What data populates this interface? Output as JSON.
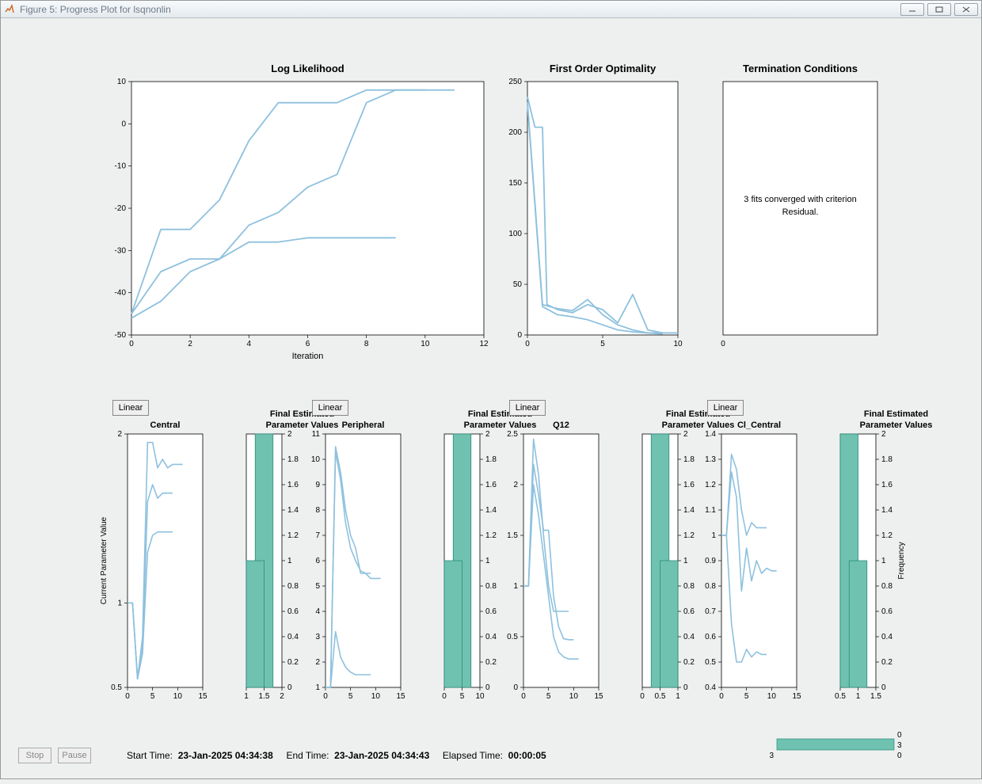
{
  "window": {
    "title": "Figure 5: Progress Plot for lsqnonlin"
  },
  "colors": {
    "line": "#8ec1de",
    "bar": "#6fc2b0",
    "bar_stroke": "#2c8a78",
    "axis": "#000000",
    "tick_color": "#202020",
    "bg": "#eef0f0",
    "plot_bg": "#ffffff"
  },
  "log_likelihood": {
    "title": "Log Likelihood",
    "xlabel": "Iteration",
    "xlim": [
      0,
      12
    ],
    "xticks": [
      0,
      2,
      4,
      6,
      8,
      10,
      12
    ],
    "ylim": [
      -50,
      10
    ],
    "yticks": [
      -50,
      -40,
      -30,
      -20,
      -10,
      0,
      10
    ],
    "series": [
      [
        [
          0,
          -45
        ],
        [
          1,
          -35
        ],
        [
          2,
          -32
        ],
        [
          3,
          -32
        ],
        [
          4,
          -28
        ],
        [
          5,
          -28
        ],
        [
          6,
          -27
        ],
        [
          7,
          -27
        ],
        [
          8,
          -27
        ],
        [
          9,
          -27
        ]
      ],
      [
        [
          0,
          -46
        ],
        [
          1,
          -42
        ],
        [
          2,
          -35
        ],
        [
          3,
          -32
        ],
        [
          4,
          -24
        ],
        [
          5,
          -21
        ],
        [
          6,
          -15
        ],
        [
          7,
          -12
        ],
        [
          8,
          5
        ],
        [
          9,
          8
        ],
        [
          10,
          8
        ],
        [
          11,
          8
        ]
      ],
      [
        [
          0,
          -45
        ],
        [
          1,
          -25
        ],
        [
          2,
          -25
        ],
        [
          3,
          -18
        ],
        [
          4,
          -4
        ],
        [
          5,
          5
        ],
        [
          6,
          5
        ],
        [
          7,
          5
        ],
        [
          8,
          8
        ],
        [
          9,
          8
        ],
        [
          10,
          8
        ]
      ]
    ]
  },
  "first_order": {
    "title": "First Order Optimality",
    "xlim": [
      0,
      10
    ],
    "xticks": [
      0,
      5,
      10
    ],
    "ylim": [
      0,
      250
    ],
    "yticks": [
      0,
      50,
      100,
      150,
      200,
      250
    ],
    "series": [
      [
        [
          0,
          235
        ],
        [
          0.5,
          205
        ],
        [
          1,
          205
        ],
        [
          1.3,
          30
        ],
        [
          2,
          25
        ],
        [
          3,
          22
        ],
        [
          4,
          30
        ],
        [
          5,
          25
        ],
        [
          6,
          12
        ],
        [
          7,
          40
        ],
        [
          8,
          5
        ],
        [
          9,
          2
        ],
        [
          10,
          2
        ]
      ],
      [
        [
          0,
          230
        ],
        [
          1,
          30
        ],
        [
          2,
          26
        ],
        [
          3,
          24
        ],
        [
          4,
          35
        ],
        [
          5,
          20
        ],
        [
          6,
          10
        ],
        [
          7,
          5
        ],
        [
          8,
          2
        ],
        [
          9,
          2
        ]
      ],
      [
        [
          0,
          228
        ],
        [
          1,
          28
        ],
        [
          2,
          20
        ],
        [
          3,
          18
        ],
        [
          4,
          15
        ],
        [
          5,
          10
        ],
        [
          6,
          5
        ],
        [
          7,
          3
        ],
        [
          8,
          2
        ],
        [
          9,
          1
        ]
      ]
    ]
  },
  "termination": {
    "title": "Termination Conditions",
    "xtick": [
      "0"
    ],
    "text": [
      "3 fits converged with criterion",
      "Residual."
    ]
  },
  "params": [
    {
      "button": "Linear",
      "title": "Central",
      "ylim": [
        0.5,
        2
      ],
      "yticks": [
        0.5,
        1,
        2
      ],
      "xlim": [
        0,
        15
      ],
      "xticks": [
        0,
        5,
        10,
        15
      ],
      "series": [
        [
          [
            0,
            1
          ],
          [
            1,
            1
          ],
          [
            2,
            0.55
          ],
          [
            3,
            0.8
          ],
          [
            4,
            1.95
          ],
          [
            5,
            1.95
          ],
          [
            6,
            1.8
          ],
          [
            7,
            1.85
          ],
          [
            8,
            1.8
          ],
          [
            9,
            1.82
          ],
          [
            10,
            1.82
          ],
          [
            11,
            1.82
          ]
        ],
        [
          [
            0,
            1
          ],
          [
            1,
            1
          ],
          [
            2,
            0.55
          ],
          [
            3,
            0.75
          ],
          [
            4,
            1.6
          ],
          [
            5,
            1.7
          ],
          [
            6,
            1.62
          ],
          [
            7,
            1.65
          ],
          [
            8,
            1.65
          ],
          [
            9,
            1.65
          ]
        ],
        [
          [
            0,
            1
          ],
          [
            1,
            1
          ],
          [
            2,
            0.55
          ],
          [
            3,
            0.7
          ],
          [
            4,
            1.3
          ],
          [
            5,
            1.4
          ],
          [
            6,
            1.42
          ],
          [
            7,
            1.42
          ],
          [
            8,
            1.42
          ],
          [
            9,
            1.42
          ]
        ]
      ],
      "bar": {
        "title": "Final Estimated Parameter Values",
        "xlim": [
          1,
          2
        ],
        "xticks": [
          1,
          1.5,
          2
        ],
        "yticks": [
          0,
          0.2,
          0.4,
          0.6,
          0.8,
          1,
          1.2,
          1.4,
          1.6,
          1.8,
          2
        ],
        "bars": [
          {
            "x": 1.5,
            "w": 0.5,
            "h": 2
          },
          {
            "x": 1.25,
            "w": 0.5,
            "h": 1
          }
        ]
      }
    },
    {
      "button": "Linear",
      "title": "Peripheral",
      "ylim": [
        1,
        11
      ],
      "yticks": [
        1,
        2,
        3,
        4,
        5,
        6,
        7,
        8,
        9,
        10,
        11
      ],
      "xlim": [
        0,
        15
      ],
      "xticks": [
        0,
        5,
        10,
        15
      ],
      "series": [
        [
          [
            0,
            1
          ],
          [
            1,
            1
          ],
          [
            2,
            10.5
          ],
          [
            3,
            9.5
          ],
          [
            4,
            8
          ],
          [
            5,
            7
          ],
          [
            6,
            6.5
          ],
          [
            7,
            5.5
          ],
          [
            8,
            5.5
          ],
          [
            9,
            5.3
          ],
          [
            10,
            5.3
          ],
          [
            11,
            5.3
          ]
        ],
        [
          [
            0,
            1
          ],
          [
            1,
            1
          ],
          [
            2,
            10.3
          ],
          [
            3,
            9.2
          ],
          [
            4,
            7.5
          ],
          [
            5,
            6.5
          ],
          [
            6,
            6.0
          ],
          [
            7,
            5.6
          ],
          [
            8,
            5.5
          ],
          [
            9,
            5.5
          ]
        ],
        [
          [
            0,
            1
          ],
          [
            1,
            1
          ],
          [
            2,
            3.2
          ],
          [
            3,
            2.2
          ],
          [
            4,
            1.8
          ],
          [
            5,
            1.6
          ],
          [
            6,
            1.5
          ],
          [
            7,
            1.5
          ],
          [
            8,
            1.5
          ],
          [
            9,
            1.5
          ]
        ]
      ],
      "bar": {
        "title": "Final Estimated Parameter Values",
        "xlim": [
          0,
          10
        ],
        "xticks": [
          0,
          5,
          10
        ],
        "yticks": [
          0,
          0.2,
          0.4,
          0.6,
          0.8,
          1,
          1.2,
          1.4,
          1.6,
          1.8,
          2
        ],
        "bars": [
          {
            "x": 5,
            "w": 5,
            "h": 2
          },
          {
            "x": 2.5,
            "w": 5,
            "h": 1
          }
        ]
      }
    },
    {
      "button": "Linear",
      "title": "Q12",
      "ylim": [
        0,
        2.5
      ],
      "yticks": [
        0,
        0.5,
        1,
        1.5,
        2,
        2.5
      ],
      "xlim": [
        0,
        15
      ],
      "xticks": [
        0,
        5,
        10,
        15
      ],
      "series": [
        [
          [
            0,
            1
          ],
          [
            1,
            1
          ],
          [
            2,
            2.45
          ],
          [
            3,
            2.1
          ],
          [
            4,
            1.5
          ],
          [
            5,
            1.0
          ],
          [
            6,
            0.75
          ],
          [
            7,
            0.75
          ],
          [
            8,
            0.75
          ],
          [
            9,
            0.75
          ]
        ],
        [
          [
            0,
            1
          ],
          [
            1,
            1
          ],
          [
            2,
            2.2
          ],
          [
            3,
            1.9
          ],
          [
            4,
            1.55
          ],
          [
            5,
            1.55
          ],
          [
            6,
            0.9
          ],
          [
            7,
            0.6
          ],
          [
            8,
            0.48
          ],
          [
            9,
            0.47
          ],
          [
            10,
            0.47
          ]
        ],
        [
          [
            0,
            1
          ],
          [
            1,
            1
          ],
          [
            2,
            2.0
          ],
          [
            3,
            1.7
          ],
          [
            4,
            1.3
          ],
          [
            5,
            0.9
          ],
          [
            6,
            0.5
          ],
          [
            7,
            0.35
          ],
          [
            8,
            0.3
          ],
          [
            9,
            0.28
          ],
          [
            10,
            0.28
          ],
          [
            11,
            0.28
          ]
        ]
      ],
      "bar": {
        "title": "Final Estimated Parameter Values",
        "xlim": [
          0,
          1
        ],
        "xticks": [
          0,
          0.5,
          1
        ],
        "yticks": [
          0,
          0.2,
          0.4,
          0.6,
          0.8,
          1,
          1.2,
          1.4,
          1.6,
          1.8,
          2
        ],
        "bars": [
          {
            "x": 0.5,
            "w": 0.5,
            "h": 2
          },
          {
            "x": 0.75,
            "w": 0.5,
            "h": 1
          }
        ]
      }
    },
    {
      "button": "Linear",
      "title": "Cl_Central",
      "ylim": [
        0.4,
        1.4
      ],
      "yticks": [
        0.4,
        0.5,
        0.6,
        0.7,
        0.8,
        0.9,
        1,
        1.1,
        1.2,
        1.3,
        1.4
      ],
      "xlim": [
        0,
        15
      ],
      "xticks": [
        0,
        5,
        10,
        15
      ],
      "series": [
        [
          [
            0,
            1
          ],
          [
            1,
            1
          ],
          [
            2,
            1.32
          ],
          [
            3,
            1.26
          ],
          [
            4,
            1.1
          ],
          [
            5,
            1.0
          ],
          [
            6,
            1.05
          ],
          [
            7,
            1.03
          ],
          [
            8,
            1.03
          ],
          [
            9,
            1.03
          ]
        ],
        [
          [
            0,
            1
          ],
          [
            1,
            1
          ],
          [
            2,
            1.25
          ],
          [
            3,
            1.15
          ],
          [
            4,
            0.78
          ],
          [
            5,
            0.95
          ],
          [
            6,
            0.82
          ],
          [
            7,
            0.9
          ],
          [
            8,
            0.85
          ],
          [
            9,
            0.87
          ],
          [
            10,
            0.86
          ],
          [
            11,
            0.86
          ]
        ],
        [
          [
            0,
            1
          ],
          [
            1,
            1
          ],
          [
            2,
            0.65
          ],
          [
            3,
            0.5
          ],
          [
            4,
            0.5
          ],
          [
            5,
            0.55
          ],
          [
            6,
            0.52
          ],
          [
            7,
            0.54
          ],
          [
            8,
            0.53
          ],
          [
            9,
            0.53
          ]
        ]
      ],
      "bar": {
        "title": "Final Estimated Parameter Values",
        "xlim": [
          0.5,
          1.5
        ],
        "xticks": [
          0.5,
          1,
          1.5
        ],
        "yticks": [
          0,
          0.2,
          0.4,
          0.6,
          0.8,
          1,
          1.2,
          1.4,
          1.6,
          1.8,
          2
        ],
        "right_label": "Frequency",
        "bars": [
          {
            "x": 0.75,
            "w": 0.5,
            "h": 2
          },
          {
            "x": 1.0,
            "w": 0.5,
            "h": 1
          }
        ]
      }
    }
  ],
  "legend_bar": {
    "labels": [
      "0",
      "3",
      "0"
    ],
    "value": 3,
    "max": 3
  },
  "footer": {
    "stop": "Stop",
    "pause": "Pause",
    "start_label": "Start Time:",
    "start": "23-Jan-2025 04:34:38",
    "end_label": "End Time:",
    "end": "23-Jan-2025 04:34:43",
    "elapsed_label": "Elapsed Time:",
    "elapsed": "00:00:05"
  },
  "side_label": "Current Parameter Value"
}
